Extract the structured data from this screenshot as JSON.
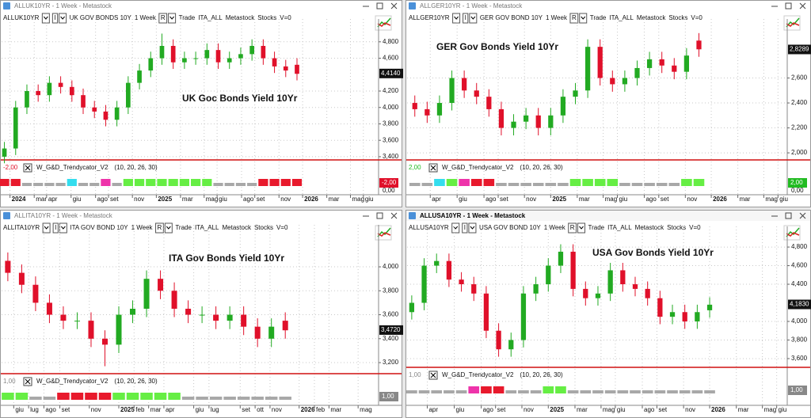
{
  "chart_data": [
    {
      "type": "candlestick",
      "window_title": "ALLUK10YR - 1 Week - Metastock",
      "toolbar": {
        "symbol": "ALLUK10YR",
        "mode": "I",
        "name": "UK GOV BONDS 10Y",
        "interval": "1 Week",
        "range": "R",
        "items": [
          "Trade",
          "ITA_ALL",
          "Metastock",
          "Stocks",
          "V=0"
        ]
      },
      "annotation": "UK Goc Bonds Yield 10Yr",
      "up_color": "#22aa22",
      "down_color": "#e0102a",
      "x": [
        -2,
        2,
        6,
        10,
        14,
        18,
        22,
        26,
        30,
        34,
        38,
        42,
        46,
        50,
        54,
        58,
        62,
        66,
        70,
        74,
        78,
        82,
        86,
        90,
        94,
        98,
        102
      ],
      "open": [
        3.4,
        3.5,
        4.0,
        4.2,
        4.15,
        4.3,
        4.25,
        4.15,
        4.0,
        3.95,
        3.85,
        4.0,
        4.3,
        4.45,
        4.6,
        4.75,
        4.55,
        4.6,
        4.6,
        4.7,
        4.55,
        4.6,
        4.65,
        4.75,
        4.6,
        4.5,
        4.52
      ],
      "high": [
        3.58,
        4.08,
        4.28,
        4.28,
        4.38,
        4.38,
        4.33,
        4.23,
        4.08,
        4.03,
        4.08,
        4.38,
        4.53,
        4.68,
        4.9,
        4.83,
        4.68,
        4.68,
        4.78,
        4.78,
        4.68,
        4.73,
        4.83,
        4.83,
        4.68,
        4.58,
        4.6
      ],
      "low": [
        3.32,
        3.42,
        3.92,
        4.07,
        4.07,
        4.17,
        4.07,
        3.92,
        3.87,
        3.77,
        3.77,
        3.92,
        4.22,
        4.37,
        4.52,
        4.47,
        4.47,
        4.52,
        4.52,
        4.47,
        4.47,
        4.52,
        4.57,
        4.52,
        4.42,
        4.37,
        4.33
      ],
      "close": [
        3.5,
        4.0,
        4.2,
        4.15,
        4.3,
        4.25,
        4.15,
        4.0,
        3.95,
        3.85,
        4.0,
        4.3,
        4.45,
        4.6,
        4.75,
        4.55,
        4.6,
        4.6,
        4.7,
        4.55,
        4.6,
        4.65,
        4.75,
        4.6,
        4.5,
        4.45,
        4.41
      ],
      "xlim": [
        -3,
        131
      ],
      "xticks": [
        {
          "value": 0,
          "label": "2024"
        },
        {
          "value": 8.6,
          "label": "mar"
        },
        {
          "value": 13,
          "label": "apr"
        },
        {
          "value": 21.7,
          "label": "giu"
        },
        {
          "value": 30.4,
          "label": "ago"
        },
        {
          "value": 35,
          "label": "set"
        },
        {
          "value": 43.5,
          "label": "nov"
        },
        {
          "value": 52,
          "label": "2025"
        },
        {
          "value": 60.6,
          "label": "mar"
        },
        {
          "value": 69,
          "label": "mag"
        },
        {
          "value": 73.6,
          "label": "giu"
        },
        {
          "value": 82.3,
          "label": "ago"
        },
        {
          "value": 87,
          "label": "set"
        },
        {
          "value": 95.6,
          "label": "nov"
        },
        {
          "value": 104,
          "label": "2026"
        },
        {
          "value": 112.6,
          "label": "mar"
        },
        {
          "value": 121,
          "label": "mag"
        },
        {
          "value": 125.6,
          "label": "giu"
        }
      ],
      "ylim": [
        3.38,
        5.02
      ],
      "yticks": [
        {
          "value": 3.4,
          "label": "3,400"
        },
        {
          "value": 3.6,
          "label": "3,600"
        },
        {
          "value": 3.8,
          "label": "3,800"
        },
        {
          "value": 4.0,
          "label": "4,000"
        },
        {
          "value": 4.2,
          "label": "4,200"
        },
        {
          "value": 4.6,
          "label": "4,600"
        },
        {
          "value": 4.8,
          "label": "4,800"
        }
      ],
      "last_label": {
        "value": 4.414,
        "label": "4,4140"
      },
      "indicator": {
        "name": "W_G&D_Trendycator_V2",
        "params": "(10, 20, 26, 30)",
        "value_label": "-2,00",
        "value_color": "#e0102a",
        "axis_label": "0,00",
        "state_colors": {
          "r": "#e8192c",
          "g": "#a8a8a8",
          "c": "#33ddee",
          "m": "#ee33aa",
          "v": "#66ee44"
        },
        "states": [
          "r",
          "r",
          "g",
          "g",
          "g",
          "g",
          "c",
          "g",
          "g",
          "m",
          "g",
          "v",
          "v",
          "v",
          "v",
          "v",
          "v",
          "v",
          "v",
          "g",
          "g",
          "g",
          "g",
          "r",
          "r",
          "r",
          "r"
        ]
      }
    },
    {
      "type": "candlestick",
      "window_title": "ALLGER10YR - 1 Week - Metastock",
      "toolbar": {
        "symbol": "ALLGER10YR",
        "mode": "I",
        "name": "GER GOV BOND 10Y",
        "interval": "1 Week",
        "range": "R",
        "items": [
          "Trade",
          "ITA_ALL",
          "Metastock",
          "Stocks",
          "V=0"
        ]
      },
      "annotation": "GER Gov Bonds Yield 10Yr",
      "up_color": "#22aa22",
      "down_color": "#e0102a",
      "x": [
        8,
        12,
        16,
        20,
        24,
        28,
        32,
        36,
        40,
        44,
        48,
        52,
        56,
        60,
        64,
        68,
        72,
        76,
        80,
        84,
        88,
        92,
        96,
        100
      ],
      "open": [
        2.4,
        2.35,
        2.3,
        2.4,
        2.6,
        2.5,
        2.45,
        2.35,
        2.2,
        2.25,
        2.3,
        2.2,
        2.3,
        2.45,
        2.5,
        2.85,
        2.6,
        2.55,
        2.6,
        2.68,
        2.75,
        2.7,
        2.65,
        2.9
      ],
      "high": [
        2.46,
        2.41,
        2.46,
        2.66,
        2.66,
        2.56,
        2.51,
        2.41,
        2.31,
        2.36,
        2.36,
        2.36,
        2.51,
        2.56,
        2.91,
        2.91,
        2.66,
        2.66,
        2.74,
        2.81,
        2.81,
        2.76,
        2.84,
        2.96
      ],
      "low": [
        2.29,
        2.24,
        2.24,
        2.34,
        2.44,
        2.39,
        2.29,
        2.14,
        2.14,
        2.19,
        2.14,
        2.14,
        2.24,
        2.39,
        2.44,
        2.54,
        2.49,
        2.49,
        2.54,
        2.62,
        2.64,
        2.59,
        2.59,
        2.77
      ],
      "close": [
        2.35,
        2.3,
        2.4,
        2.6,
        2.5,
        2.45,
        2.35,
        2.2,
        2.25,
        2.3,
        2.2,
        2.3,
        2.45,
        2.5,
        2.85,
        2.6,
        2.55,
        2.6,
        2.68,
        2.75,
        2.7,
        2.65,
        2.78,
        2.83
      ],
      "xlim": [
        5.5,
        128.6
      ],
      "xticks": [
        {
          "value": 13,
          "label": "apr"
        },
        {
          "value": 21.7,
          "label": "giu"
        },
        {
          "value": 30.4,
          "label": "ago"
        },
        {
          "value": 35,
          "label": "set"
        },
        {
          "value": 43.5,
          "label": "nov"
        },
        {
          "value": 52,
          "label": "2025"
        },
        {
          "value": 60.6,
          "label": "mar"
        },
        {
          "value": 69,
          "label": "mag"
        },
        {
          "value": 73.6,
          "label": "giu"
        },
        {
          "value": 82.3,
          "label": "ago"
        },
        {
          "value": 87,
          "label": "set"
        },
        {
          "value": 95.6,
          "label": "nov"
        },
        {
          "value": 104,
          "label": "2026"
        },
        {
          "value": 112.6,
          "label": "mar"
        },
        {
          "value": 121,
          "label": "mag"
        },
        {
          "value": 125.6,
          "label": "giu"
        }
      ],
      "ylim": [
        1.956,
        3.035
      ],
      "yticks": [
        {
          "value": 2.0,
          "label": "2,000"
        },
        {
          "value": 2.2,
          "label": "2,200"
        },
        {
          "value": 2.4,
          "label": "2,400"
        },
        {
          "value": 2.6,
          "label": "2,600"
        }
      ],
      "last_label": {
        "value": 2.8289,
        "label": "2,8289"
      },
      "indicator": {
        "name": "W_G&D_Trendycator_V2",
        "params": "(10, 20, 26, 30)",
        "value_label": "2,00",
        "value_color": "#22bb22",
        "axis_label": "0,00",
        "state_colors": {
          "r": "#e8192c",
          "g": "#a8a8a8",
          "c": "#33ddee",
          "m": "#ee33aa",
          "v": "#66ee44"
        },
        "states": [
          "g",
          "g",
          "c",
          "v",
          "m",
          "r",
          "r",
          "g",
          "g",
          "g",
          "g",
          "g",
          "g",
          "v",
          "v",
          "v",
          "v",
          "g",
          "g",
          "g",
          "g",
          "g",
          "v",
          "v"
        ]
      }
    },
    {
      "type": "candlestick",
      "window_title": "ALLITA10YR - 1 Week - Metastock",
      "toolbar": {
        "symbol": "ALLITA10YR",
        "mode": "I",
        "name": "ITA GOV BOND 10Y",
        "interval": "1 Week",
        "range": "R",
        "items": [
          "Trade",
          "ITA_ALL",
          "Metastock",
          "Stocks",
          "V=0"
        ]
      },
      "annotation": "ITA Gov Bonds Yield 10Yr",
      "up_color": "#22aa22",
      "down_color": "#e0102a",
      "x": [
        20,
        24,
        28,
        32,
        36,
        40,
        44,
        48,
        52,
        56,
        60,
        64,
        68,
        72,
        76,
        80,
        84,
        88,
        92,
        96,
        100
      ],
      "open": [
        4.05,
        3.95,
        3.85,
        3.7,
        3.6,
        3.55,
        3.55,
        3.4,
        3.35,
        3.6,
        3.65,
        3.9,
        3.8,
        3.65,
        3.6,
        3.6,
        3.55,
        3.6,
        3.5,
        3.4,
        3.55
      ],
      "high": [
        4.12,
        4.02,
        3.92,
        3.77,
        3.67,
        3.62,
        3.62,
        3.47,
        3.67,
        3.72,
        3.97,
        3.97,
        3.87,
        3.72,
        3.67,
        3.67,
        3.67,
        3.67,
        3.57,
        3.57,
        3.62
      ],
      "low": [
        3.88,
        3.78,
        3.63,
        3.53,
        3.48,
        3.48,
        3.33,
        3.17,
        3.28,
        3.53,
        3.58,
        3.73,
        3.58,
        3.53,
        3.53,
        3.48,
        3.48,
        3.43,
        3.33,
        3.33,
        3.4
      ],
      "close": [
        3.95,
        3.85,
        3.7,
        3.6,
        3.55,
        3.55,
        3.4,
        3.35,
        3.6,
        3.65,
        3.9,
        3.8,
        3.65,
        3.6,
        3.6,
        3.55,
        3.6,
        3.5,
        3.4,
        3.5,
        3.47
      ],
      "xlim": [
        18.2,
        126.9
      ],
      "xticks": [
        {
          "value": 21.7,
          "label": "giu"
        },
        {
          "value": 26,
          "label": "lug"
        },
        {
          "value": 30.4,
          "label": "ago"
        },
        {
          "value": 35,
          "label": "set"
        },
        {
          "value": 43.5,
          "label": "nov"
        },
        {
          "value": 52,
          "label": "2025"
        },
        {
          "value": 56.4,
          "label": "feb"
        },
        {
          "value": 60.6,
          "label": "mar"
        },
        {
          "value": 65,
          "label": "apr"
        },
        {
          "value": 73.6,
          "label": "giu"
        },
        {
          "value": 78,
          "label": "lug"
        },
        {
          "value": 87,
          "label": "set"
        },
        {
          "value": 91.3,
          "label": "ott"
        },
        {
          "value": 95.6,
          "label": "nov"
        },
        {
          "value": 104,
          "label": "2026"
        },
        {
          "value": 108.4,
          "label": "feb"
        },
        {
          "value": 112.6,
          "label": "mar"
        },
        {
          "value": 121,
          "label": "mag"
        }
      ],
      "ylim": [
        3.121,
        4.311
      ],
      "yticks": [
        {
          "value": 3.2,
          "label": "3,200"
        },
        {
          "value": 3.4,
          "label": "3,400"
        },
        {
          "value": 3.6,
          "label": "3,600"
        },
        {
          "value": 3.8,
          "label": "3,800"
        },
        {
          "value": 4.0,
          "label": "4,000"
        }
      ],
      "last_label": {
        "value": 3.472,
        "label": "3,4720"
      },
      "indicator": {
        "name": "W_G&D_Trendycator_V2",
        "params": "(10, 20, 26, 30)",
        "value_label": "1,00",
        "value_color": "#888888",
        "state_colors": {
          "r": "#e8192c",
          "g": "#a8a8a8",
          "c": "#33ddee",
          "m": "#ee33aa",
          "v": "#66ee44"
        },
        "states": [
          "v",
          "v",
          "g",
          "g",
          "r",
          "r",
          "r",
          "r",
          "v",
          "v",
          "v",
          "v",
          "v",
          "g",
          "g",
          "g",
          "g",
          "g",
          "g",
          "g",
          "g"
        ]
      }
    },
    {
      "type": "candlestick",
      "window_title": "ALLUSA10YR - 1 Week - Metastock",
      "active_window": true,
      "toolbar": {
        "symbol": "ALLUSA10YR",
        "mode": "I",
        "name": "USA GOV BOND 10Y",
        "interval": "1 Week",
        "range": "R",
        "items": [
          "Trade",
          "ITA_ALL",
          "Metastock",
          "Stocks",
          "V=0"
        ]
      },
      "annotation": "USA Gov Bonds Yield 10Yr",
      "up_color": "#22aa22",
      "down_color": "#e0102a",
      "x": [
        8,
        12,
        16,
        20,
        24,
        28,
        32,
        36,
        40,
        44,
        48,
        52,
        56,
        60,
        64,
        68,
        72,
        76,
        80,
        84,
        88,
        92,
        96,
        100,
        104
      ],
      "open": [
        4.1,
        4.2,
        4.6,
        4.65,
        4.45,
        4.4,
        4.3,
        3.9,
        3.7,
        3.8,
        4.3,
        4.4,
        4.6,
        4.75,
        4.35,
        4.25,
        4.3,
        4.55,
        4.4,
        4.35,
        4.25,
        4.05,
        4.1,
        4.0,
        4.12
      ],
      "high": [
        4.28,
        4.68,
        4.73,
        4.73,
        4.53,
        4.48,
        4.38,
        3.98,
        3.88,
        4.38,
        4.48,
        4.68,
        4.83,
        4.83,
        4.43,
        4.38,
        4.63,
        4.63,
        4.48,
        4.43,
        4.33,
        4.18,
        4.18,
        4.18,
        4.26
      ],
      "low": [
        4.02,
        4.12,
        4.52,
        4.37,
        4.32,
        4.22,
        3.82,
        3.62,
        3.62,
        3.72,
        4.22,
        4.32,
        4.52,
        4.27,
        4.17,
        4.17,
        4.22,
        4.32,
        4.27,
        4.17,
        3.97,
        3.97,
        3.92,
        3.92,
        4.04
      ],
      "close": [
        4.2,
        4.6,
        4.65,
        4.45,
        4.4,
        4.3,
        3.9,
        3.7,
        3.8,
        4.3,
        4.4,
        4.6,
        4.75,
        4.35,
        4.25,
        4.3,
        4.55,
        4.4,
        4.35,
        4.25,
        4.05,
        4.1,
        4.0,
        4.1,
        4.18
      ],
      "xlim": [
        6.5,
        129
      ],
      "xticks": [
        {
          "value": 13,
          "label": "apr"
        },
        {
          "value": 21.7,
          "label": "giu"
        },
        {
          "value": 30.4,
          "label": "ago"
        },
        {
          "value": 35,
          "label": "set"
        },
        {
          "value": 43.5,
          "label": "nov"
        },
        {
          "value": 52,
          "label": "2025"
        },
        {
          "value": 60.6,
          "label": "mar"
        },
        {
          "value": 69,
          "label": "mag"
        },
        {
          "value": 73.6,
          "label": "giu"
        },
        {
          "value": 82.3,
          "label": "ago"
        },
        {
          "value": 87,
          "label": "set"
        },
        {
          "value": 95.6,
          "label": "nov"
        },
        {
          "value": 104,
          "label": "2026"
        },
        {
          "value": 112.6,
          "label": "mar"
        },
        {
          "value": 121,
          "label": "mag"
        },
        {
          "value": 125.6,
          "label": "giu"
        }
      ],
      "ylim": [
        3.523,
        4.971
      ],
      "yticks": [
        {
          "value": 3.6,
          "label": "3,600"
        },
        {
          "value": 3.8,
          "label": "3,800"
        },
        {
          "value": 4.0,
          "label": "4,000"
        },
        {
          "value": 4.4,
          "label": "4,400"
        },
        {
          "value": 4.6,
          "label": "4,600"
        },
        {
          "value": 4.8,
          "label": "4,800"
        }
      ],
      "last_label": {
        "value": 4.183,
        "label": "4,1830"
      },
      "indicator": {
        "name": "W_G&D_Trendycator_V2",
        "params": "(10, 20, 26, 30)",
        "value_label": "1,00",
        "value_color": "#888888",
        "state_colors": {
          "r": "#e8192c",
          "g": "#a8a8a8",
          "c": "#33ddee",
          "m": "#ee33aa",
          "v": "#66ee44"
        },
        "states": [
          "g",
          "g",
          "g",
          "g",
          "g",
          "m",
          "r",
          "r",
          "g",
          "g",
          "g",
          "v",
          "v",
          "g",
          "g",
          "g",
          "g",
          "g",
          "g",
          "g",
          "g",
          "g",
          "g",
          "g",
          "g"
        ]
      }
    }
  ]
}
